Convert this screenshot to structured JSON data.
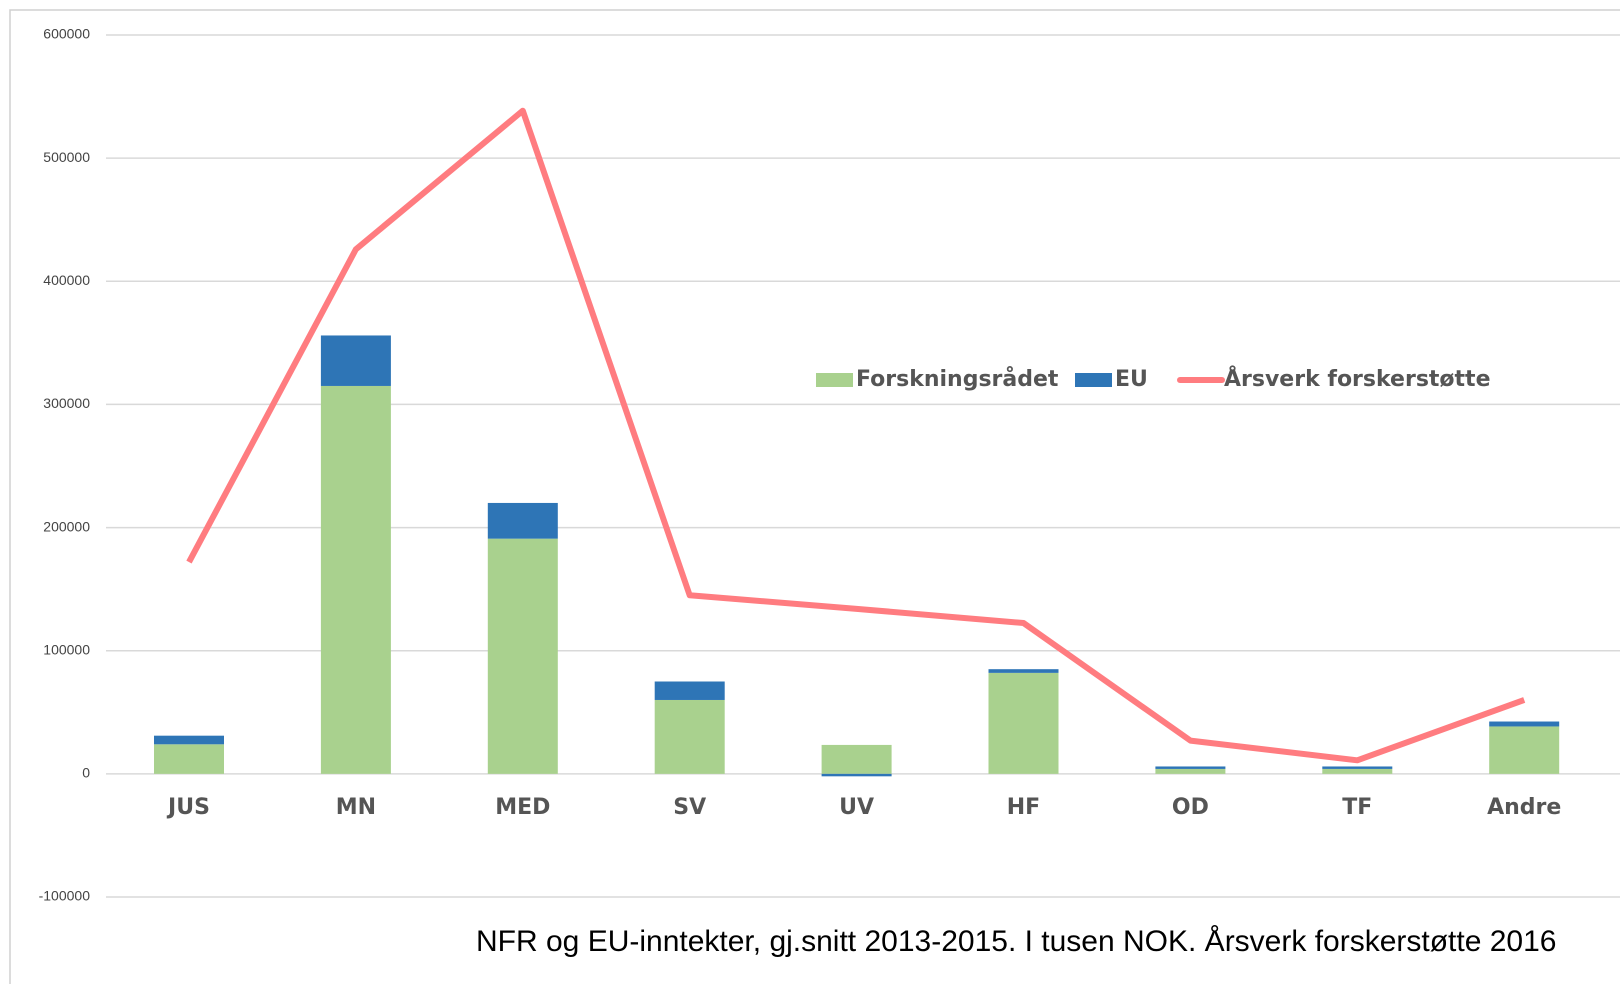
{
  "chart_data": {
    "type": "bar_line",
    "title": "NFR og EU-inntekter, gj.snitt 2013-2015. I tusen NOK. Årsverk forskerstøtte 2016",
    "categories": [
      "JUS",
      "MN",
      "MED",
      "SV",
      "UV",
      "HF",
      "OD",
      "TF",
      "Andre"
    ],
    "series": [
      {
        "name": "Forskningsrådet",
        "color": "#a9d18e",
        "kind": "bar",
        "values": [
          24000,
          315000,
          191000,
          60000,
          23500,
          82000,
          4000,
          4000,
          38500
        ]
      },
      {
        "name": "EU",
        "color": "#2e75b6",
        "kind": "bar",
        "values": [
          7000,
          41000,
          29000,
          15000,
          -2000,
          3000,
          2000,
          2000,
          4000
        ]
      },
      {
        "name": "Årsverk forskerstøtte",
        "color": "#ff7c80",
        "kind": "line",
        "values": [
          172000,
          426000,
          538500,
          145000,
          134000,
          122500,
          27000,
          11000,
          60000
        ]
      }
    ],
    "ylim": [
      -100000,
      600000
    ],
    "yticks": [
      -100000,
      0,
      100000,
      200000,
      300000,
      400000,
      500000,
      600000
    ],
    "grid": true
  }
}
